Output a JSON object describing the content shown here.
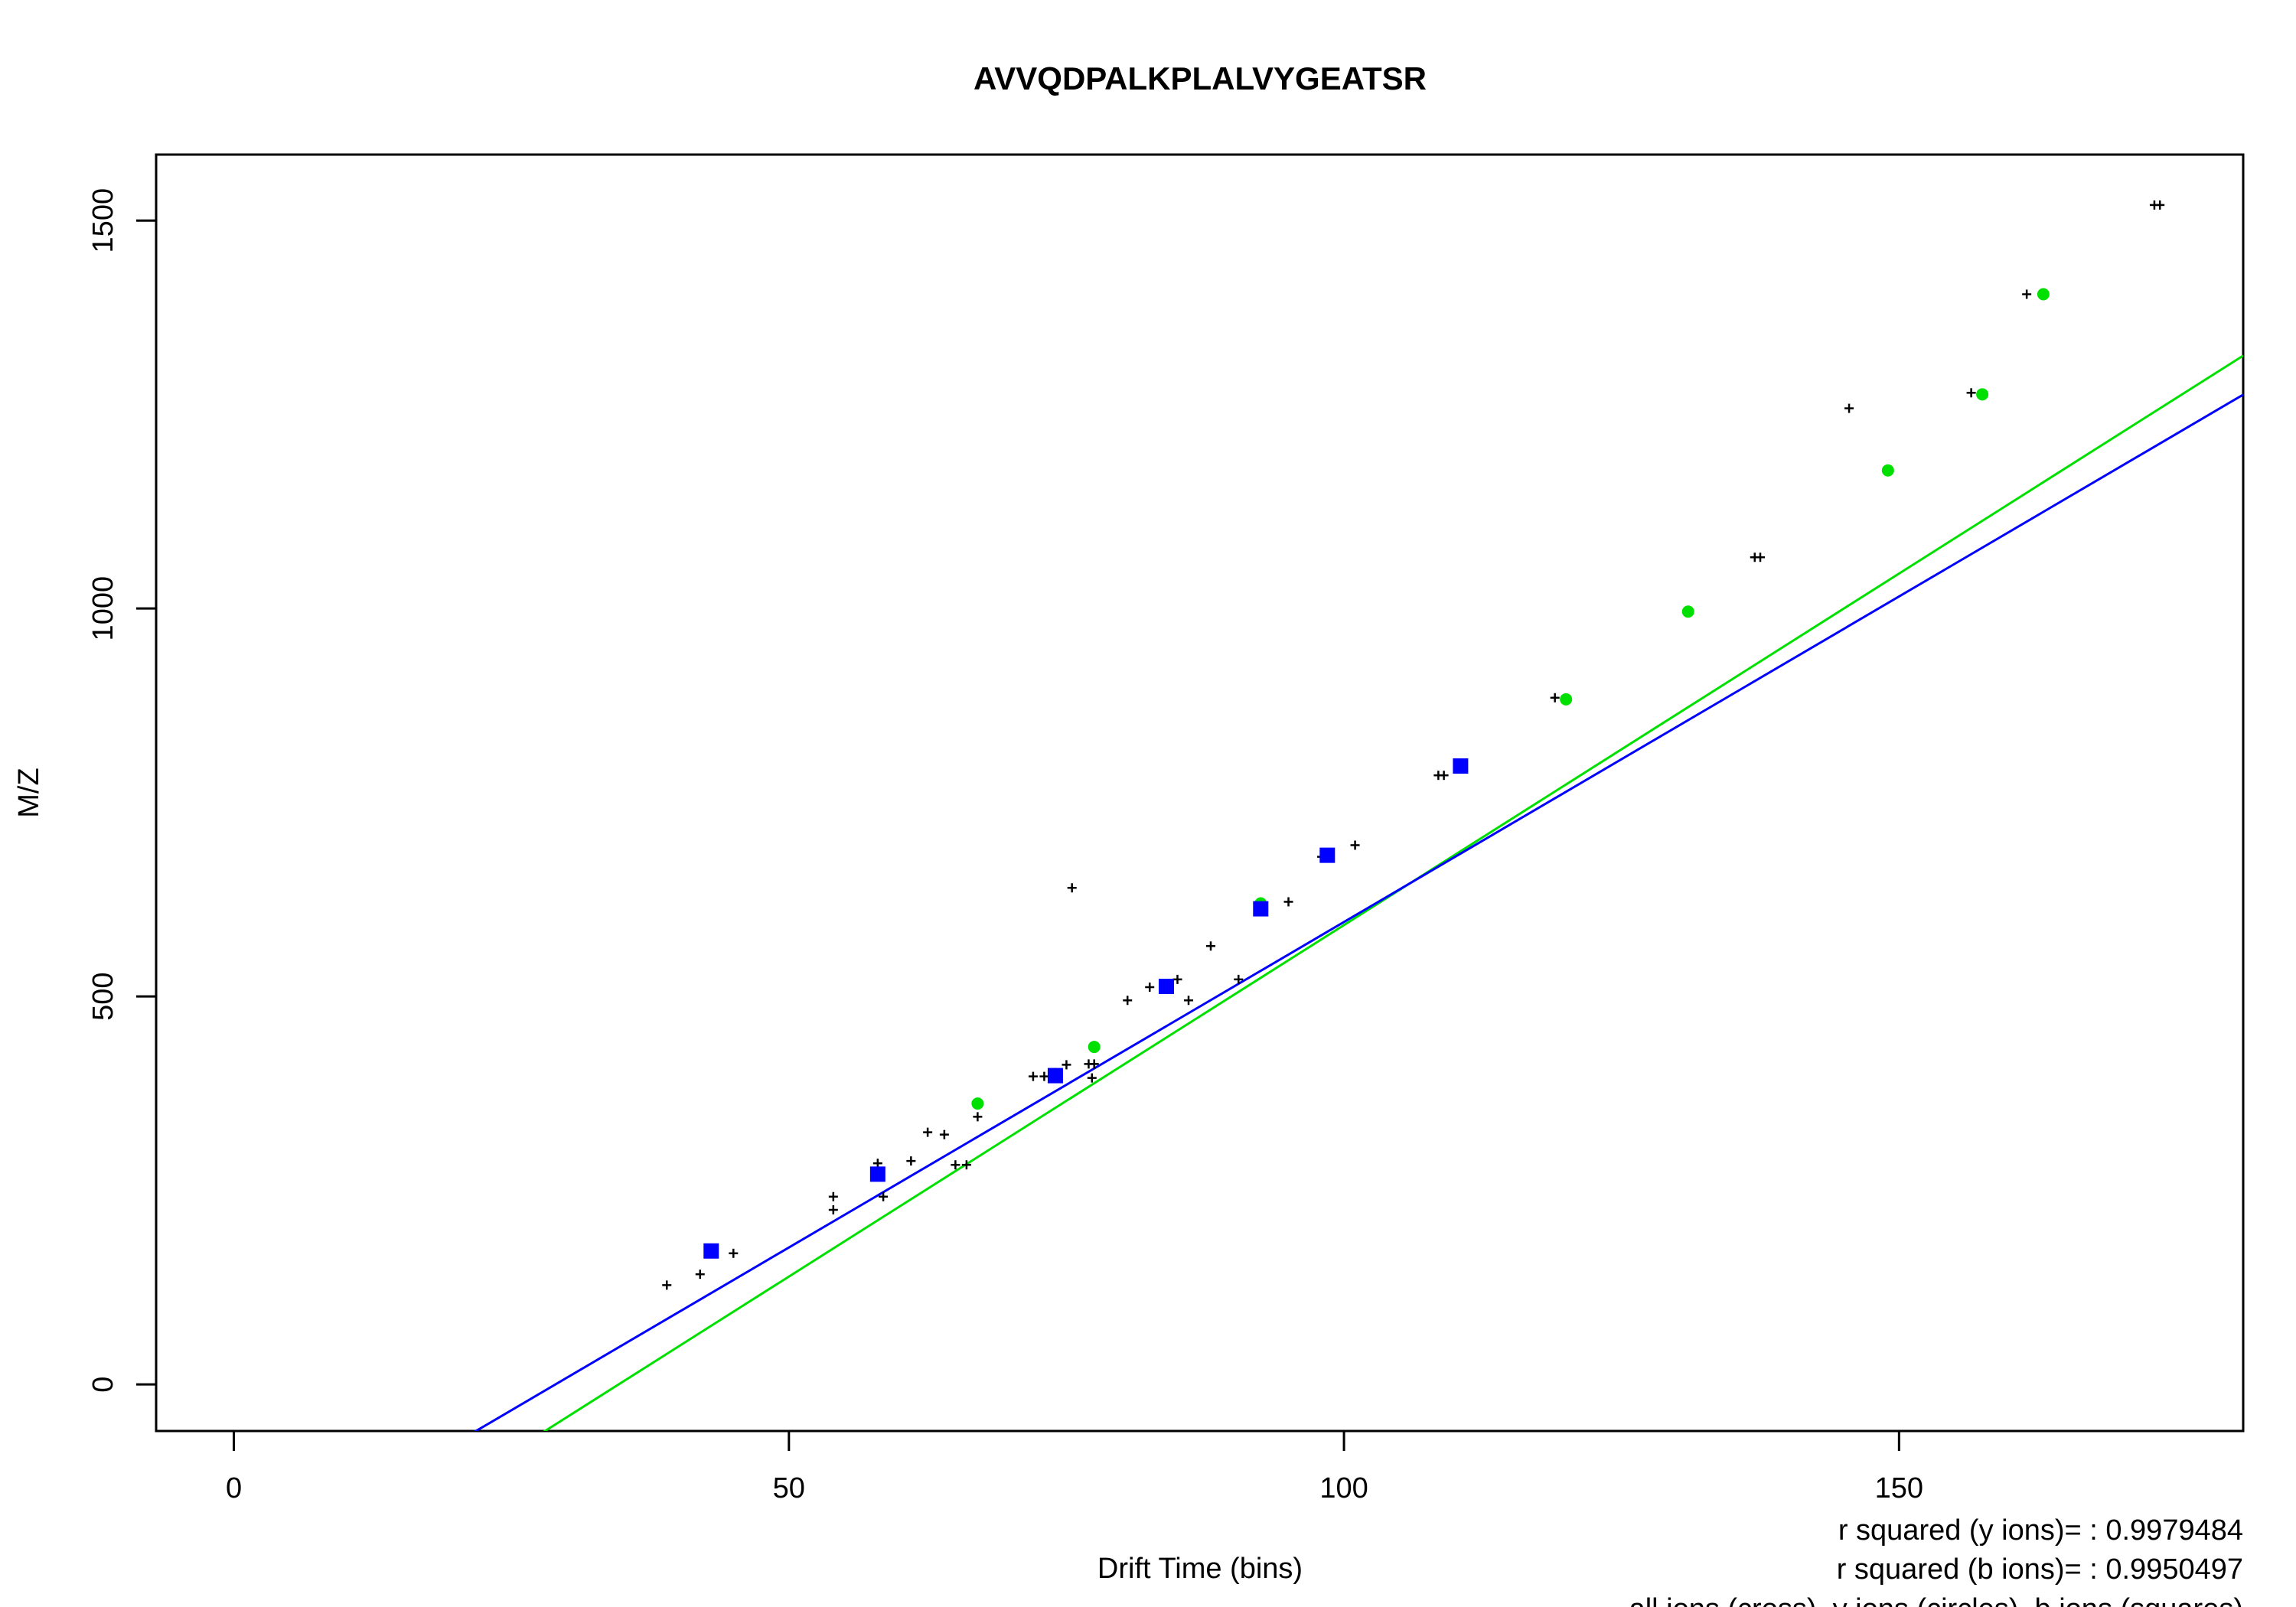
{
  "chart_data": {
    "type": "scatter",
    "title": "AVVQDPALKPLALVYGEATSR",
    "xlabel": "Drift Time (bins)",
    "ylabel": "M/Z",
    "xlim": [
      -7,
      181
    ],
    "ylim": [
      -60,
      1585
    ],
    "xticks": [
      0,
      50,
      100,
      150
    ],
    "yticks": [
      0,
      500,
      1000,
      1500
    ],
    "grid": false,
    "legend": "none",
    "annotations": [
      "r squared (y ions)= : 0.9979484",
      "r squared (b ions)= : 0.9950497",
      "all ions (cross), y ions (circles), b ions (squares)"
    ],
    "series": [
      {
        "marker": "cross",
        "color": "#000000",
        "points": [
          [
            39,
            128
          ],
          [
            42,
            142
          ],
          [
            45,
            169
          ],
          [
            54,
            225
          ],
          [
            54,
            242
          ],
          [
            58,
            285
          ],
          [
            58.5,
            242
          ],
          [
            61,
            288
          ],
          [
            62.5,
            325
          ],
          [
            64,
            322
          ],
          [
            65,
            283
          ],
          [
            66,
            283
          ],
          [
            67,
            345
          ],
          [
            72,
            397
          ],
          [
            73,
            397
          ],
          [
            74,
            402
          ],
          [
            75,
            412
          ],
          [
            75.5,
            640
          ],
          [
            77,
            413
          ],
          [
            77.5,
            413
          ],
          [
            77.3,
            395
          ],
          [
            80.5,
            495
          ],
          [
            82.5,
            512
          ],
          [
            85,
            522
          ],
          [
            86,
            495
          ],
          [
            88,
            565
          ],
          [
            90.5,
            522
          ],
          [
            95,
            622
          ],
          [
            98,
            680
          ],
          [
            101,
            695
          ],
          [
            108.5,
            785
          ],
          [
            109,
            785
          ],
          [
            119,
            885
          ],
          [
            137,
            1066
          ],
          [
            137.5,
            1066
          ],
          [
            145.5,
            1258
          ],
          [
            156.5,
            1278
          ],
          [
            161.5,
            1405
          ],
          [
            173,
            1520
          ],
          [
            173.5,
            1520
          ]
        ]
      },
      {
        "marker": "circle",
        "color": "#00e000",
        "points": [
          [
            67,
            362
          ],
          [
            77.5,
            435
          ],
          [
            92.5,
            620
          ],
          [
            120,
            883
          ],
          [
            131,
            996
          ],
          [
            149,
            1178
          ],
          [
            157.5,
            1276
          ],
          [
            163,
            1405
          ]
        ]
      },
      {
        "marker": "square",
        "color": "#0000ff",
        "points": [
          [
            43,
            172
          ],
          [
            58,
            271
          ],
          [
            74,
            398
          ],
          [
            84,
            513
          ],
          [
            92.5,
            613
          ],
          [
            98.5,
            682
          ],
          [
            110.5,
            797
          ]
        ]
      }
    ],
    "fit_lines": [
      {
        "color": "#00e000",
        "slope": 9.06,
        "intercept": -314
      },
      {
        "color": "#0000ff",
        "slope": 8.39,
        "intercept": -243
      }
    ]
  }
}
